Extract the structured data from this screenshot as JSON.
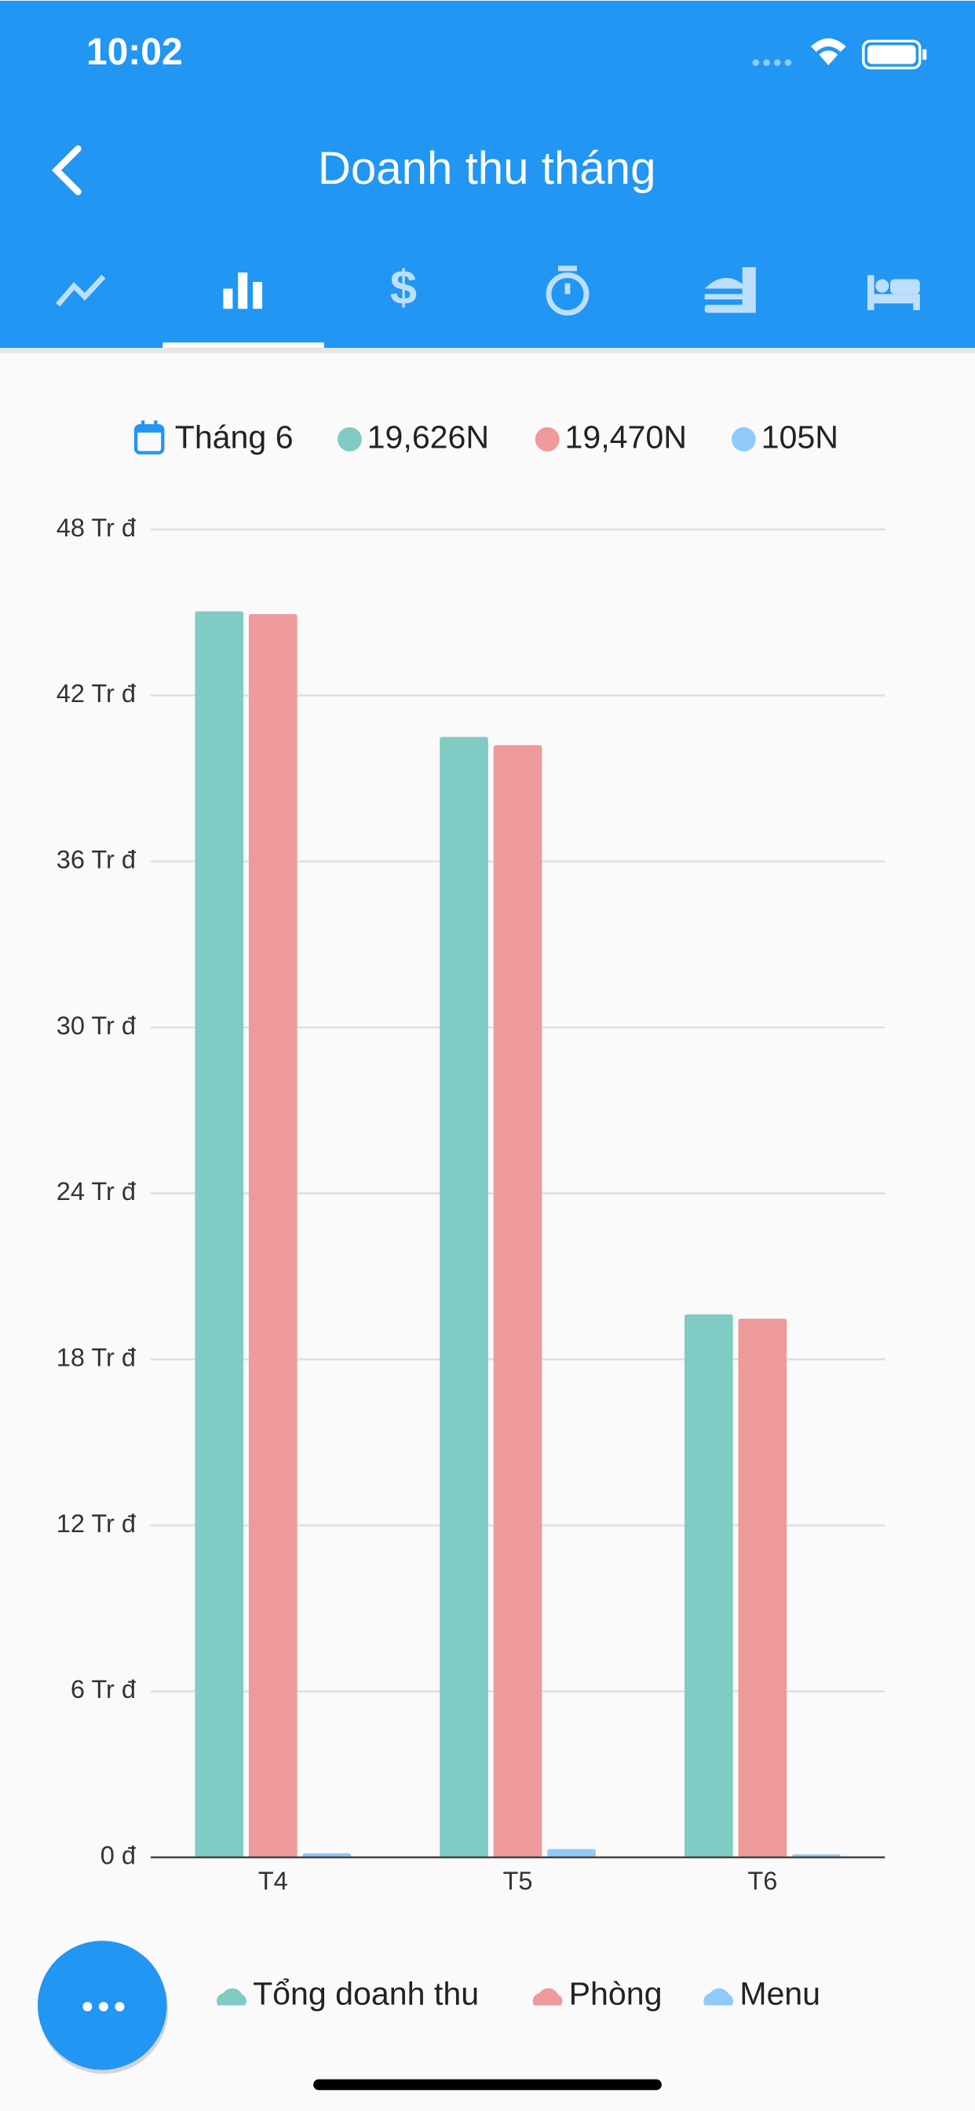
{
  "status_bar": {
    "time": "10:02"
  },
  "header": {
    "title": "Doanh thu tháng"
  },
  "summary": {
    "month": "Tháng 6",
    "items": [
      "19,626N",
      "19,470N",
      "105N"
    ]
  },
  "chart_data": {
    "type": "bar",
    "categories": [
      "T4",
      "T5",
      "T6"
    ],
    "series": [
      {
        "name": "Tổng doanh thu",
        "color": "#80cbc4",
        "values": [
          45.04,
          40.5,
          19.626
        ]
      },
      {
        "name": "Phòng",
        "color": "#ef9a9a",
        "values": [
          44.94,
          40.2,
          19.47
        ]
      },
      {
        "name": "Menu",
        "color": "#90caf9",
        "values": [
          0.15,
          0.3,
          0.105
        ]
      }
    ],
    "ylim": [
      0,
      48
    ],
    "yticks": [
      {
        "value": 0,
        "label": "0 đ"
      },
      {
        "value": 6,
        "label": "6 Tr đ"
      },
      {
        "value": 12,
        "label": "12 Tr đ"
      },
      {
        "value": 18,
        "label": "18 Tr đ"
      },
      {
        "value": 24,
        "label": "24 Tr đ"
      },
      {
        "value": 30,
        "label": "30 Tr đ"
      },
      {
        "value": 36,
        "label": "36 Tr đ"
      },
      {
        "value": 42,
        "label": "42 Tr đ"
      },
      {
        "value": 48,
        "label": "48 Tr đ"
      }
    ],
    "grid": true,
    "legend": "bottom"
  }
}
